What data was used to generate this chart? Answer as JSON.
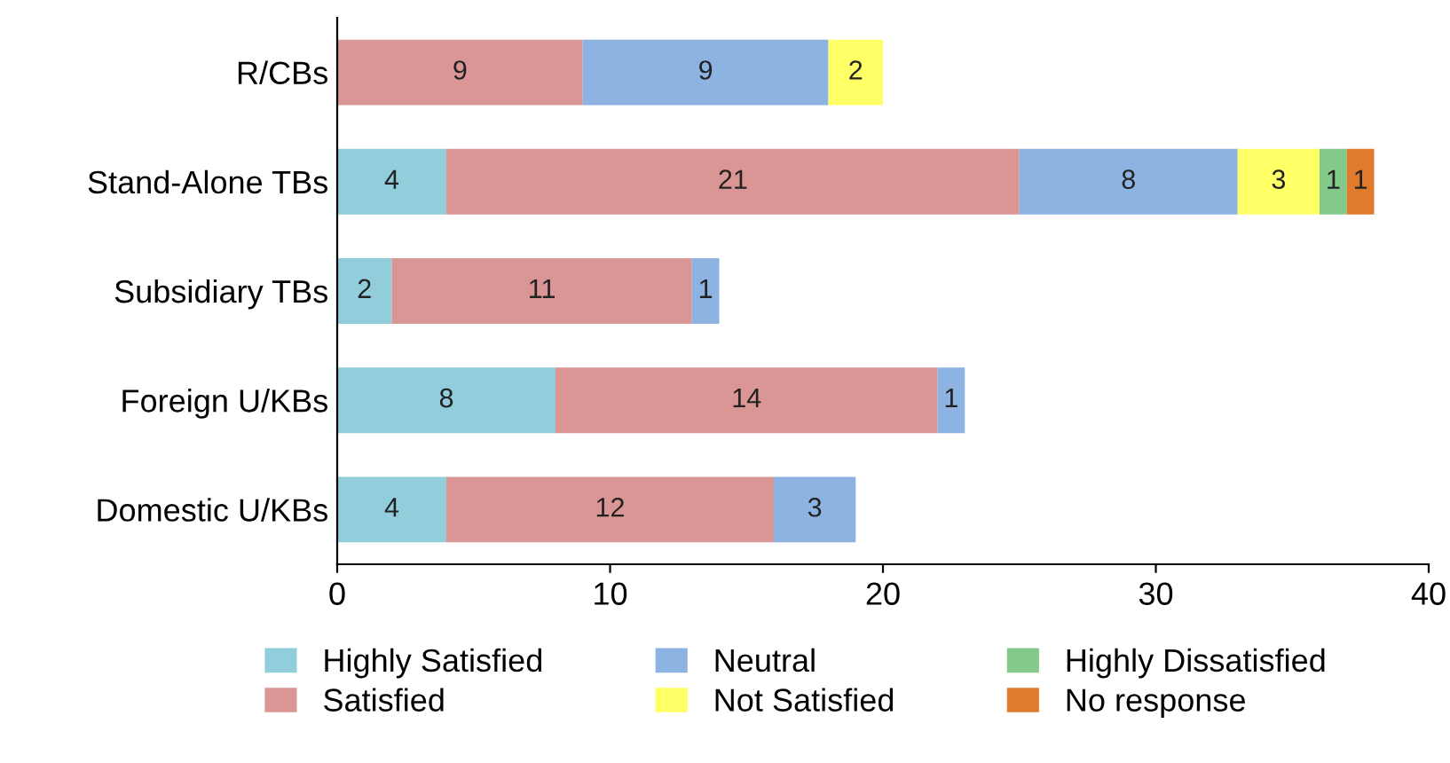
{
  "chart_data": {
    "type": "bar",
    "orientation": "horizontal",
    "stacked": true,
    "data_labels": true,
    "categories": [
      "R/CBs",
      "Stand-Alone TBs",
      "Subsidiary TBs",
      "Foreign U/KBs",
      "Domestic U/KBs"
    ],
    "series": [
      {
        "name": "Highly Satisfied",
        "color": "#92cddc",
        "values": [
          null,
          4,
          2,
          8,
          4
        ]
      },
      {
        "name": "Satisfied",
        "color": "#da9694",
        "values": [
          9,
          21,
          11,
          14,
          12
        ]
      },
      {
        "name": "Neutral",
        "color": "#8db3e2",
        "values": [
          9,
          8,
          1,
          1,
          3
        ]
      },
      {
        "name": "Not Satisfied",
        "color": "#ffff66",
        "values": [
          2,
          3,
          null,
          null,
          null
        ]
      },
      {
        "name": "Highly Dissatisfied",
        "color": "#82c98a",
        "values": [
          null,
          1,
          null,
          null,
          null
        ]
      },
      {
        "name": "No response",
        "color": "#e07b2e",
        "values": [
          null,
          1,
          null,
          null,
          null
        ]
      }
    ],
    "xlim": [
      0,
      40
    ],
    "xticks": [
      0,
      10,
      20,
      30,
      40
    ],
    "grid": false,
    "legend": "bottom"
  }
}
